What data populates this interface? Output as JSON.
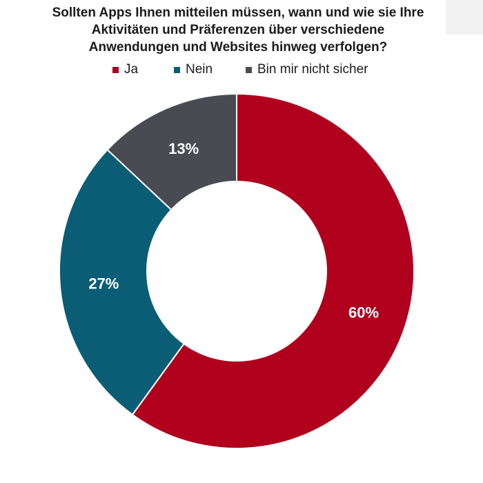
{
  "colors": {
    "ja": "#b0001e",
    "nein": "#0b5d76",
    "unsure": "#4a4b52",
    "background": "#ffffff"
  },
  "chart_data": {
    "type": "pie",
    "title_lines": [
      "Sollten Apps Ihnen mitteilen müssen, wann und wie sie Ihre",
      "Aktivitäten und Präferenzen über verschiedene",
      "Anwendungen und Websites hinweg verfolgen?"
    ],
    "donut": true,
    "legend_position": "top",
    "slices": [
      {
        "label": "Ja",
        "value": 60,
        "display": "60%",
        "color": "#b0001e"
      },
      {
        "label": "Nein",
        "value": 27,
        "display": "27%",
        "color": "#0b5d76"
      },
      {
        "label": "Bin mir nicht sicher",
        "value": 13,
        "display": "13%",
        "color": "#4a4b52"
      }
    ]
  }
}
